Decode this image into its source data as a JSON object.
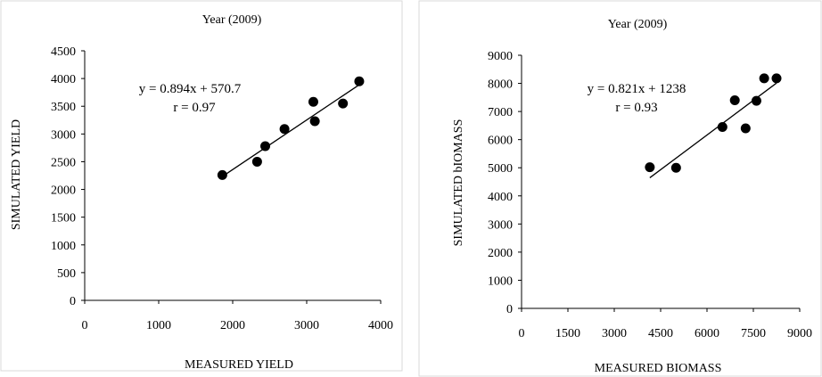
{
  "chart_data": [
    {
      "type": "scatter",
      "title": "Year (2009)",
      "xlabel": "MEASURED YIELD",
      "ylabel": "SIMULATED YIELD",
      "xlim": [
        0,
        4000
      ],
      "ylim": [
        0,
        4500
      ],
      "xticks": [
        "0",
        "1000",
        "2000",
        "3000",
        "4000"
      ],
      "yticks": [
        "0",
        "500",
        "1000",
        "1500",
        "2000",
        "2500",
        "3000",
        "3500",
        "4000",
        "4500"
      ],
      "equation": "y = 0.894x + 570.7",
      "r_label": "r = 0.97",
      "trendline": {
        "slope": 0.894,
        "intercept": 570.7,
        "x_range": [
          1850,
          3720
        ]
      },
      "grid": false,
      "points": [
        {
          "x": 1860,
          "y": 2260
        },
        {
          "x": 2330,
          "y": 2500
        },
        {
          "x": 2440,
          "y": 2780
        },
        {
          "x": 2700,
          "y": 3090
        },
        {
          "x": 3090,
          "y": 3580
        },
        {
          "x": 3110,
          "y": 3230
        },
        {
          "x": 3490,
          "y": 3550
        },
        {
          "x": 3710,
          "y": 3950
        }
      ]
    },
    {
      "type": "scatter",
      "title": "Year (2009)",
      "xlabel": "MEASURED BIOMASS",
      "ylabel": "SIMULATED bIOMASS",
      "xlim": [
        0,
        9000
      ],
      "ylim": [
        0,
        9000
      ],
      "xticks": [
        "0",
        "1500",
        "3000",
        "4500",
        "6000",
        "7500",
        "9000"
      ],
      "yticks": [
        "0",
        "1000",
        "2000",
        "3000",
        "4000",
        "5000",
        "6000",
        "7000",
        "8000",
        "9000"
      ],
      "equation": "y = 0.821x + 1238",
      "r_label": "r = 0.93",
      "trendline": {
        "slope": 0.821,
        "intercept": 1238,
        "x_range": [
          4150,
          8250
        ]
      },
      "grid": false,
      "points": [
        {
          "x": 4150,
          "y": 5020
        },
        {
          "x": 5000,
          "y": 5000
        },
        {
          "x": 6500,
          "y": 6450
        },
        {
          "x": 6900,
          "y": 7400
        },
        {
          "x": 7250,
          "y": 6400
        },
        {
          "x": 7600,
          "y": 7380
        },
        {
          "x": 7850,
          "y": 8180
        },
        {
          "x": 8250,
          "y": 8180
        }
      ]
    }
  ]
}
